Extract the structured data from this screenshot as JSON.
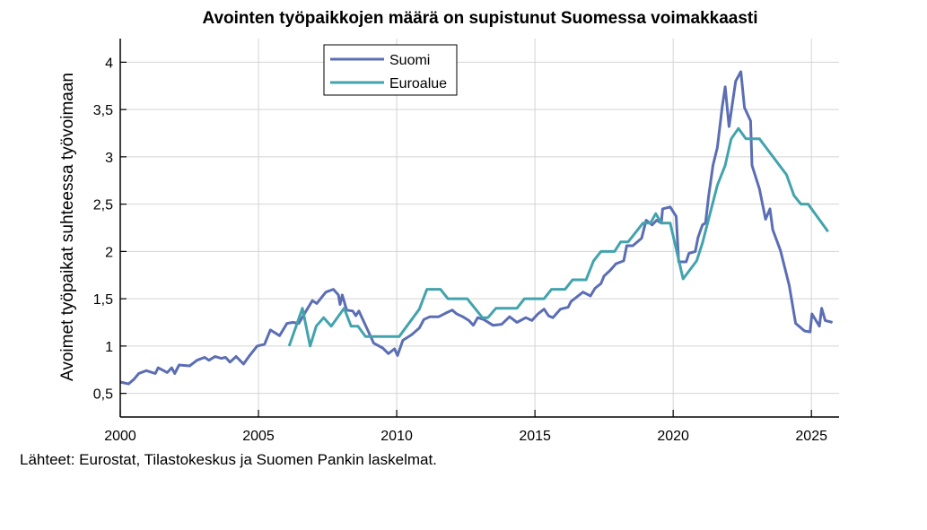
{
  "chart_data": {
    "type": "line",
    "title": "Avointen työpaikkojen määrä on supistunut Suomessa voimakkaasti",
    "ylabel": "Avoimet työpaikat suhteessa työvoimaan",
    "xlabel": "",
    "source": "Lähteet: Eurostat, Tilastokeskus ja Suomen Pankin laskelmat.",
    "xlim": [
      2000,
      2026
    ],
    "ylim": [
      0.25,
      4.25
    ],
    "x_ticks": [
      2000,
      2005,
      2010,
      2015,
      2020,
      2025
    ],
    "x_tick_labels": [
      "2000",
      "2005",
      "2010",
      "2015",
      "2020",
      "2025"
    ],
    "y_ticks": [
      0.5,
      1,
      1.5,
      2,
      2.5,
      3,
      3.5,
      4
    ],
    "y_tick_labels": [
      "0,5",
      "1",
      "1,5",
      "2",
      "2,5",
      "3",
      "3,5",
      "4"
    ],
    "grid": true,
    "legend_position": "top-center",
    "series": [
      {
        "name": "Suomi",
        "color": "#5b6eb4",
        "x": [
          2000.0,
          2000.3,
          2000.5,
          2000.67,
          2000.94,
          2001.27,
          2001.37,
          2001.7,
          2001.86,
          2001.97,
          2002.13,
          2002.51,
          2002.78,
          2003.05,
          2003.21,
          2003.43,
          2003.65,
          2003.81,
          2003.97,
          2004.19,
          2004.46,
          2004.68,
          2004.95,
          2005.22,
          2005.43,
          2005.76,
          2006.03,
          2006.25,
          2006.46,
          2006.68,
          2006.95,
          2007.11,
          2007.27,
          2007.44,
          2007.71,
          2007.89,
          2007.95,
          2008.03,
          2008.19,
          2008.41,
          2008.52,
          2008.63,
          2008.84,
          2009.17,
          2009.49,
          2009.7,
          2009.92,
          2010.03,
          2010.22,
          2010.54,
          2010.82,
          2010.98,
          2011.2,
          2011.52,
          2011.79,
          2012.01,
          2012.17,
          2012.39,
          2012.61,
          2012.77,
          2012.93,
          2013.15,
          2013.48,
          2013.8,
          2014.08,
          2014.35,
          2014.67,
          2014.89,
          2015.11,
          2015.33,
          2015.49,
          2015.65,
          2015.92,
          2016.2,
          2016.3,
          2016.52,
          2016.74,
          2017.01,
          2017.17,
          2017.39,
          2017.5,
          2017.72,
          2017.93,
          2018.21,
          2018.32,
          2018.54,
          2018.86,
          2019.02,
          2019.24,
          2019.4,
          2019.57,
          2019.62,
          2019.89,
          2020.11,
          2020.2,
          2020.47,
          2020.57,
          2020.8,
          2020.9,
          2021.06,
          2021.17,
          2021.28,
          2021.44,
          2021.6,
          2021.77,
          2021.88,
          2022.02,
          2022.26,
          2022.45,
          2022.58,
          2022.8,
          2022.85,
          2023.12,
          2023.34,
          2023.5,
          2023.6,
          2023.88,
          2024.2,
          2024.43,
          2024.75,
          2024.95,
          2025.02,
          2025.29,
          2025.37,
          2025.5,
          2025.76
        ],
        "y": [
          0.62,
          0.6,
          0.65,
          0.71,
          0.74,
          0.71,
          0.77,
          0.72,
          0.77,
          0.71,
          0.8,
          0.79,
          0.85,
          0.88,
          0.85,
          0.89,
          0.87,
          0.88,
          0.83,
          0.89,
          0.81,
          0.9,
          1.0,
          1.02,
          1.17,
          1.11,
          1.24,
          1.25,
          1.24,
          1.35,
          1.48,
          1.45,
          1.51,
          1.57,
          1.6,
          1.54,
          1.44,
          1.54,
          1.38,
          1.37,
          1.32,
          1.37,
          1.24,
          1.03,
          0.98,
          0.92,
          0.97,
          0.9,
          1.06,
          1.12,
          1.19,
          1.28,
          1.31,
          1.31,
          1.35,
          1.38,
          1.34,
          1.31,
          1.27,
          1.22,
          1.3,
          1.28,
          1.22,
          1.23,
          1.31,
          1.25,
          1.3,
          1.27,
          1.34,
          1.39,
          1.32,
          1.3,
          1.39,
          1.41,
          1.47,
          1.52,
          1.57,
          1.53,
          1.61,
          1.66,
          1.74,
          1.8,
          1.87,
          1.9,
          2.06,
          2.06,
          2.14,
          2.33,
          2.28,
          2.33,
          2.3,
          2.45,
          2.47,
          2.37,
          1.89,
          1.89,
          1.98,
          2.0,
          2.15,
          2.28,
          2.3,
          2.58,
          2.91,
          3.1,
          3.52,
          3.74,
          3.32,
          3.8,
          3.9,
          3.52,
          3.38,
          2.91,
          2.66,
          2.34,
          2.45,
          2.23,
          2.01,
          1.64,
          1.24,
          1.16,
          1.15,
          1.34,
          1.21,
          1.4,
          1.27,
          1.25
        ]
      },
      {
        "name": "Euroalue",
        "color": "#43a3ad",
        "x": [
          2006.11,
          2006.59,
          2006.87,
          2007.09,
          2007.36,
          2007.63,
          2008.1,
          2008.35,
          2008.6,
          2008.87,
          2010.09,
          2010.82,
          2011.09,
          2011.58,
          2011.85,
          2012.55,
          2013.1,
          2013.3,
          2013.59,
          2014.35,
          2014.62,
          2015.33,
          2015.6,
          2016.09,
          2016.36,
          2016.85,
          2017.12,
          2017.39,
          2017.88,
          2018.1,
          2018.37,
          2018.91,
          2019.18,
          2019.37,
          2019.57,
          2019.89,
          2020.36,
          2020.85,
          2021.06,
          2021.6,
          2021.88,
          2022.1,
          2022.36,
          2022.63,
          2023.12,
          2024.1,
          2024.37,
          2024.62,
          2024.88,
          2025.6
        ],
        "y": [
          1.0,
          1.4,
          1.0,
          1.21,
          1.3,
          1.21,
          1.4,
          1.21,
          1.21,
          1.1,
          1.1,
          1.39,
          1.6,
          1.6,
          1.5,
          1.5,
          1.3,
          1.3,
          1.4,
          1.4,
          1.5,
          1.5,
          1.6,
          1.6,
          1.7,
          1.7,
          1.9,
          2.0,
          2.0,
          2.1,
          2.1,
          2.3,
          2.3,
          2.4,
          2.3,
          2.3,
          1.71,
          1.9,
          2.09,
          2.7,
          2.91,
          3.19,
          3.3,
          3.19,
          3.19,
          2.81,
          2.59,
          2.5,
          2.5,
          2.21
        ]
      }
    ]
  }
}
